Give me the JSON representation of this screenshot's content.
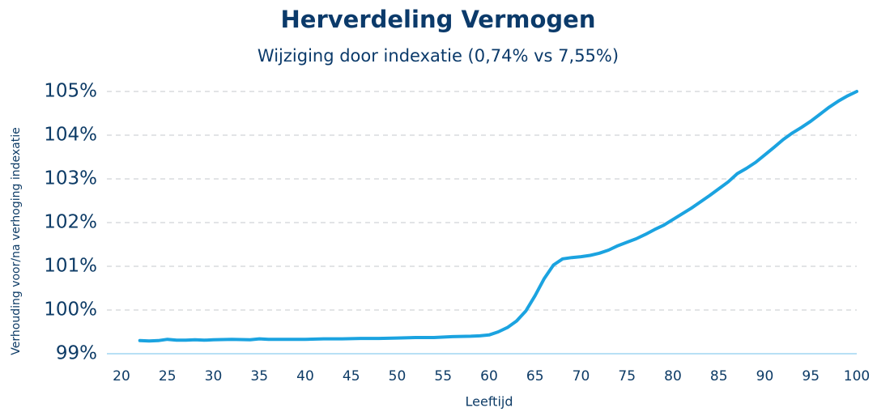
{
  "chart_data": {
    "type": "line",
    "title": "Herverdeling Vermogen",
    "subtitle": "Wijziging door indexatie (0,74% vs 7,55%)",
    "x_label": "Leeftijd",
    "y_label": "Verhouding voor/na verhoging indexatie",
    "color": "#1ba3e0",
    "grid": true,
    "x": [
      22,
      23,
      24,
      25,
      26,
      27,
      28,
      29,
      30,
      32,
      34,
      35,
      36,
      38,
      40,
      42,
      44,
      46,
      48,
      50,
      52,
      54,
      56,
      58,
      59,
      60,
      61,
      62,
      63,
      64,
      65,
      66,
      67,
      68,
      69,
      70,
      71,
      72,
      73,
      74,
      75,
      76,
      77,
      78,
      79,
      80,
      82,
      84,
      86,
      87,
      88,
      89,
      90,
      91,
      92,
      93,
      94,
      95,
      96,
      97,
      98,
      99,
      100
    ],
    "values": [
      99.3,
      99.29,
      99.3,
      99.33,
      99.31,
      99.31,
      99.32,
      99.31,
      99.32,
      99.33,
      99.32,
      99.34,
      99.33,
      99.33,
      99.33,
      99.34,
      99.34,
      99.35,
      99.35,
      99.36,
      99.37,
      99.37,
      99.39,
      99.4,
      99.41,
      99.43,
      99.5,
      99.6,
      99.75,
      99.98,
      100.33,
      100.72,
      101.03,
      101.17,
      101.2,
      101.22,
      101.25,
      101.3,
      101.37,
      101.47,
      101.55,
      101.63,
      101.73,
      101.84,
      101.94,
      102.07,
      102.33,
      102.62,
      102.93,
      103.12,
      103.24,
      103.38,
      103.55,
      103.72,
      103.9,
      104.05,
      104.18,
      104.32,
      104.48,
      104.64,
      104.78,
      104.9,
      105.0
    ],
    "xlim": [
      20,
      100
    ],
    "xticks": [
      20,
      25,
      30,
      35,
      40,
      45,
      50,
      55,
      60,
      65,
      70,
      75,
      80,
      85,
      90,
      95,
      100
    ],
    "ylim": [
      99,
      105
    ],
    "yticks": [
      {
        "value": 99,
        "label": "99%"
      },
      {
        "value": 100,
        "label": "100%"
      },
      {
        "value": 101,
        "label": "101%"
      },
      {
        "value": 102,
        "label": "102%"
      },
      {
        "value": 103,
        "label": "103%"
      },
      {
        "value": 104,
        "label": "104%"
      },
      {
        "value": 105,
        "label": "105%"
      }
    ]
  }
}
